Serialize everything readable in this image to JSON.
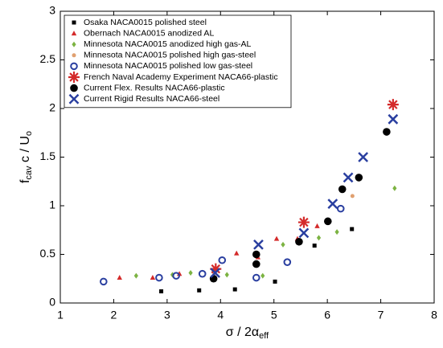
{
  "chart_data": {
    "type": "scatter",
    "xlabel": [
      "σ / 2α",
      "eff"
    ],
    "ylabel": [
      "f",
      "cav",
      " c / U",
      "o"
    ],
    "xlim": [
      1,
      8
    ],
    "ylim": [
      0,
      3
    ],
    "xticks": [
      1,
      2,
      3,
      4,
      5,
      6,
      7,
      8
    ],
    "yticks": [
      0,
      0.5,
      1,
      1.5,
      2,
      2.5,
      3
    ],
    "grid": false,
    "legend": "upper-left",
    "series": [
      {
        "name": "Osaka NACA0015 polished steel",
        "color": "#000000",
        "marker": "square",
        "x": [
          2.89,
          3.6,
          4.27,
          5.02,
          5.76,
          6.46
        ],
        "values": [
          0.12,
          0.13,
          0.14,
          0.22,
          0.59,
          0.76
        ]
      },
      {
        "name": "Obernach NACA0015 anodized AL",
        "color": "#d42a2a",
        "marker": "triangle",
        "x": [
          2.11,
          2.73,
          3.23,
          4.3,
          4.7,
          5.05,
          5.44,
          5.81
        ],
        "values": [
          0.26,
          0.26,
          0.3,
          0.51,
          0.47,
          0.66,
          0.66,
          0.79
        ]
      },
      {
        "name": "Minnesota NACA0015 anodized high gas-AL",
        "color": "#7cb342",
        "marker": "diamond",
        "x": [
          2.42,
          3.1,
          3.44,
          4.12,
          4.79,
          5.17,
          5.84,
          6.18,
          7.26
        ],
        "values": [
          0.28,
          0.29,
          0.31,
          0.29,
          0.28,
          0.6,
          0.67,
          0.73,
          1.18
        ]
      },
      {
        "name": "Minnesota NACA0015 polished high gas-steel",
        "color": "#e0a070",
        "marker": "dot",
        "x": [
          3.87,
          6.47
        ],
        "values": [
          0.32,
          1.1
        ]
      },
      {
        "name": "Minnesota NACA0015 polished low gas-steel",
        "color": "#2a3fa0",
        "marker": "ring",
        "x": [
          1.81,
          2.85,
          3.17,
          3.66,
          4.03,
          4.67,
          5.25,
          6.25
        ],
        "values": [
          0.22,
          0.26,
          0.28,
          0.3,
          0.44,
          0.26,
          0.42,
          0.97
        ]
      },
      {
        "name": "French Naval Academy Experiment NACA66-plastic",
        "color": "#d42a2a",
        "marker": "star",
        "x": [
          3.91,
          5.56,
          7.23
        ],
        "values": [
          0.35,
          0.83,
          2.04
        ]
      },
      {
        "name": "Current Flex. Results NACA66-plastic",
        "color": "#000000",
        "marker": "circle",
        "x": [
          3.87,
          4.67,
          4.67,
          5.47,
          6.01,
          6.28,
          6.59,
          7.11
        ],
        "values": [
          0.25,
          0.4,
          0.5,
          0.63,
          0.84,
          1.17,
          1.29,
          1.76
        ]
      },
      {
        "name": "Current Rigid Results NACA66-steel",
        "color": "#2a3fa0",
        "marker": "x",
        "x": [
          3.9,
          4.71,
          5.56,
          6.1,
          6.39,
          6.67,
          7.23
        ],
        "values": [
          0.31,
          0.6,
          0.72,
          1.02,
          1.29,
          1.5,
          1.89
        ]
      }
    ]
  }
}
